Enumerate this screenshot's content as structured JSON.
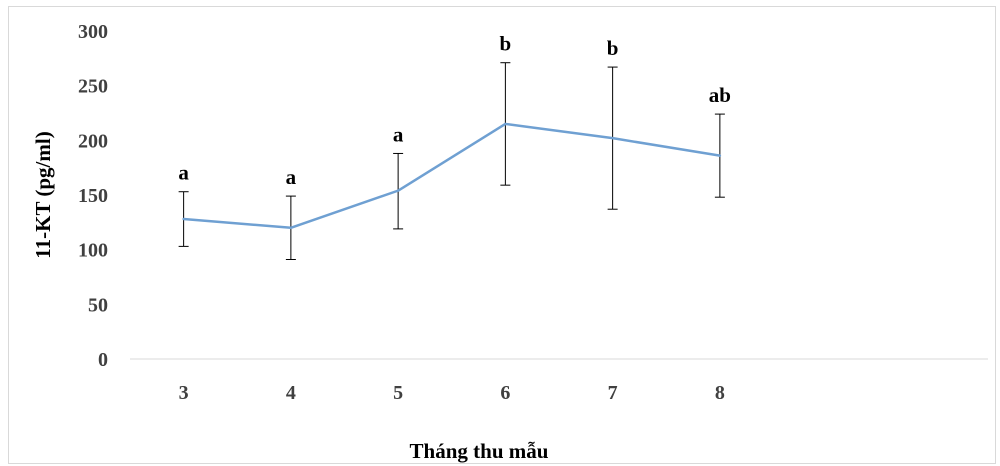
{
  "chart_data": {
    "type": "line",
    "title": "",
    "xlabel": "Tháng thu mẫu",
    "ylabel": "11-KT  (pg/ml)",
    "categories": [
      "3",
      "4",
      "5",
      "6",
      "7",
      "8"
    ],
    "slots": 8,
    "ylim": [
      0,
      300
    ],
    "yticks": [
      0,
      50,
      100,
      150,
      200,
      250,
      300
    ],
    "grid": false,
    "legend": "none",
    "series": [
      {
        "values": [
          128,
          120,
          154,
          215,
          202,
          186
        ],
        "error_low": [
          103,
          91,
          119,
          159,
          137,
          148
        ],
        "error_high": [
          153,
          149,
          188,
          271,
          267,
          224
        ],
        "significance": [
          "a",
          "a",
          "a",
          "b",
          "b",
          "ab"
        ]
      }
    ],
    "colors": {
      "line": "#6fa0d2",
      "error": "#000000",
      "axis": "#d9d9d9",
      "tick_text": "#404040"
    }
  }
}
